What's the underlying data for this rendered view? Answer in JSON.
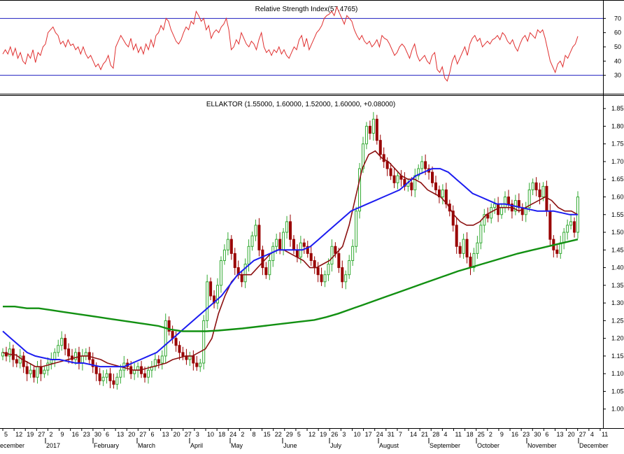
{
  "colors": {
    "background": "#ffffff",
    "axis": "#000000",
    "rsi_line": "#e03030",
    "rsi_levels": "#2020c0",
    "candle_up": "#33aa33",
    "candle_down": "#990000",
    "ma_short": "#8b1010",
    "ma_medium": "#1c1cf0",
    "ma_long": "#129012"
  },
  "chart_data": [
    {
      "type": "line",
      "title": "Relative Strength Index(57.4765)",
      "ylim": [
        20,
        80
      ],
      "yticks": [
        "70",
        "60",
        "50",
        "40",
        "30"
      ],
      "levels": [
        70,
        30
      ],
      "series": [
        {
          "values": [
            45,
            48,
            45,
            50,
            44,
            49,
            42,
            46,
            40,
            38,
            45,
            42,
            48,
            39,
            46,
            44,
            50,
            52,
            60,
            62,
            64,
            60,
            58,
            52,
            54,
            50,
            55,
            51,
            52,
            48,
            50,
            45,
            50,
            45,
            42,
            44,
            40,
            36,
            38,
            34,
            38,
            40,
            44,
            37,
            35,
            50,
            54,
            58,
            55,
            52,
            50,
            56,
            48,
            52,
            46,
            50,
            45,
            52,
            48,
            55,
            50,
            58,
            60,
            65,
            62,
            70,
            68,
            62,
            58,
            54,
            52,
            55,
            60,
            64,
            62,
            68,
            66,
            75,
            72,
            68,
            70,
            62,
            65,
            56,
            60,
            62,
            60,
            64,
            66,
            70,
            62,
            48,
            50,
            55,
            52,
            60,
            56,
            52,
            50,
            54,
            52,
            48,
            55,
            60,
            50,
            46,
            48,
            44,
            48,
            46,
            50,
            45,
            48,
            44,
            42,
            46,
            50,
            48,
            55,
            58,
            50,
            56,
            48,
            52,
            56,
            60,
            62,
            65,
            70,
            72,
            73,
            75,
            72,
            78,
            74,
            70,
            66,
            72,
            70,
            68,
            62,
            58,
            55,
            58,
            54,
            52,
            54,
            50,
            52,
            55,
            50,
            58,
            56,
            55,
            52,
            48,
            44,
            46,
            50,
            52,
            50,
            46,
            42,
            48,
            52,
            44,
            40,
            42,
            44,
            40,
            38,
            44,
            46,
            34,
            32,
            36,
            28,
            26,
            32,
            40,
            44,
            38,
            42,
            46,
            50,
            44,
            52,
            56,
            58,
            54,
            56,
            50,
            52,
            54,
            52,
            55,
            56,
            58,
            55,
            60,
            58,
            54,
            52,
            55,
            50,
            47,
            52,
            56,
            58,
            54,
            60,
            58,
            56,
            62,
            60,
            62,
            56,
            48,
            40,
            36,
            32,
            38,
            40,
            36,
            44,
            42,
            46,
            50,
            52,
            57.4765
          ]
        }
      ]
    },
    {
      "type": "candlestick",
      "title": "ELLAKTOR (1.55000, 1.60000, 1.52000, 1.60000, +0.08000)",
      "ylim": [
        0.95,
        1.88
      ],
      "yticks": [
        "1.85",
        "1.80",
        "1.75",
        "1.70",
        "1.65",
        "1.60",
        "1.55",
        "1.50",
        "1.45",
        "1.40",
        "1.35",
        "1.30",
        "1.25",
        "1.20",
        "1.15",
        "1.10",
        "1.05",
        "1.00"
      ],
      "xticks": [
        "5",
        "12",
        "19",
        "27",
        "2",
        "9",
        "16",
        "23",
        "30",
        "6",
        "13",
        "20",
        "27",
        "6",
        "13",
        "20",
        "27",
        "3",
        "10",
        "18",
        "24",
        "2",
        "8",
        "15",
        "22",
        "29",
        "5",
        "12",
        "19",
        "26",
        "3",
        "10",
        "17",
        "24",
        "31",
        "7",
        "14",
        "21",
        "28",
        "4",
        "11",
        "18",
        "25",
        "2",
        "9",
        "16",
        "23",
        "30",
        "6",
        "13",
        "20",
        "27",
        "4",
        "11"
      ],
      "month_labels": [
        "ecember",
        "2017",
        "February",
        "March",
        "April",
        "May",
        "June",
        "July",
        "August",
        "September",
        "October",
        "November",
        "December"
      ],
      "closes": [
        1.16,
        1.15,
        1.17,
        1.14,
        1.13,
        1.15,
        1.12,
        1.1,
        1.11,
        1.09,
        1.12,
        1.1,
        1.11,
        1.13,
        1.14,
        1.16,
        1.18,
        1.2,
        1.17,
        1.15,
        1.14,
        1.16,
        1.13,
        1.15,
        1.16,
        1.14,
        1.12,
        1.1,
        1.08,
        1.09,
        1.1,
        1.08,
        1.07,
        1.09,
        1.11,
        1.13,
        1.12,
        1.1,
        1.11,
        1.12,
        1.1,
        1.09,
        1.11,
        1.12,
        1.14,
        1.13,
        1.15,
        1.25,
        1.22,
        1.2,
        1.18,
        1.16,
        1.15,
        1.14,
        1.15,
        1.13,
        1.12,
        1.13,
        1.25,
        1.36,
        1.32,
        1.3,
        1.35,
        1.42,
        1.45,
        1.48,
        1.44,
        1.4,
        1.38,
        1.36,
        1.41,
        1.46,
        1.49,
        1.52,
        1.45,
        1.4,
        1.38,
        1.42,
        1.46,
        1.48,
        1.45,
        1.5,
        1.53,
        1.48,
        1.45,
        1.43,
        1.47,
        1.46,
        1.44,
        1.42,
        1.4,
        1.38,
        1.36,
        1.38,
        1.41,
        1.46,
        1.44,
        1.4,
        1.36,
        1.38,
        1.42,
        1.46,
        1.56,
        1.68,
        1.75,
        1.8,
        1.78,
        1.82,
        1.76,
        1.72,
        1.7,
        1.68,
        1.66,
        1.64,
        1.66,
        1.65,
        1.63,
        1.64,
        1.62,
        1.66,
        1.68,
        1.7,
        1.68,
        1.67,
        1.64,
        1.62,
        1.6,
        1.62,
        1.58,
        1.56,
        1.52,
        1.46,
        1.44,
        1.48,
        1.43,
        1.4,
        1.44,
        1.47,
        1.52,
        1.55,
        1.54,
        1.57,
        1.58,
        1.55,
        1.57,
        1.6,
        1.58,
        1.56,
        1.59,
        1.57,
        1.55,
        1.57,
        1.62,
        1.64,
        1.62,
        1.6,
        1.63,
        1.56,
        1.48,
        1.45,
        1.44,
        1.47,
        1.5,
        1.52,
        1.53,
        1.5,
        1.6
      ],
      "series": [
        {
          "role": "ma_short",
          "values": [
            1.16,
            1.155,
            1.153,
            1.14,
            1.13,
            1.12,
            1.12,
            1.125,
            1.13,
            1.135,
            1.14,
            1.145,
            1.15,
            1.15,
            1.145,
            1.14,
            1.13,
            1.125,
            1.12,
            1.115,
            1.11,
            1.11,
            1.115,
            1.12,
            1.125,
            1.13,
            1.14,
            1.145,
            1.15,
            1.15,
            1.16,
            1.17,
            1.2,
            1.27,
            1.32,
            1.36,
            1.38,
            1.38,
            1.38,
            1.4,
            1.42,
            1.44,
            1.45,
            1.45,
            1.44,
            1.43,
            1.42,
            1.4,
            1.4,
            1.41,
            1.42,
            1.44,
            1.46,
            1.52,
            1.6,
            1.68,
            1.72,
            1.73,
            1.71,
            1.7,
            1.68,
            1.66,
            1.65,
            1.65,
            1.64,
            1.62,
            1.61,
            1.6,
            1.58,
            1.55,
            1.53,
            1.52,
            1.52,
            1.53,
            1.55,
            1.56,
            1.57,
            1.57,
            1.57,
            1.56,
            1.57,
            1.58,
            1.59,
            1.6,
            1.59,
            1.57,
            1.56,
            1.56,
            1.55
          ]
        },
        {
          "role": "ma_medium",
          "values": [
            1.22,
            1.2,
            1.18,
            1.16,
            1.15,
            1.145,
            1.14,
            1.14,
            1.135,
            1.13,
            1.13,
            1.125,
            1.12,
            1.12,
            1.12,
            1.12,
            1.13,
            1.14,
            1.15,
            1.16,
            1.18,
            1.2,
            1.22,
            1.24,
            1.26,
            1.28,
            1.3,
            1.32,
            1.35,
            1.38,
            1.4,
            1.42,
            1.43,
            1.44,
            1.45,
            1.45,
            1.45,
            1.45,
            1.46,
            1.48,
            1.5,
            1.52,
            1.54,
            1.56,
            1.57,
            1.58,
            1.59,
            1.6,
            1.61,
            1.62,
            1.64,
            1.66,
            1.67,
            1.68,
            1.68,
            1.67,
            1.65,
            1.63,
            1.61,
            1.6,
            1.59,
            1.58,
            1.58,
            1.575,
            1.57,
            1.565,
            1.56,
            1.56,
            1.56,
            1.555,
            1.55,
            1.55
          ]
        },
        {
          "role": "ma_long",
          "values": [
            1.29,
            1.29,
            1.285,
            1.285,
            1.28,
            1.275,
            1.27,
            1.265,
            1.26,
            1.255,
            1.25,
            1.245,
            1.24,
            1.235,
            1.225,
            1.22,
            1.22,
            1.22,
            1.222,
            1.225,
            1.228,
            1.232,
            1.236,
            1.24,
            1.244,
            1.248,
            1.252,
            1.26,
            1.27,
            1.282,
            1.294,
            1.306,
            1.318,
            1.33,
            1.342,
            1.354,
            1.366,
            1.378,
            1.39,
            1.4,
            1.41,
            1.42,
            1.43,
            1.44,
            1.448,
            1.456,
            1.464,
            1.472,
            1.48
          ]
        }
      ]
    }
  ]
}
